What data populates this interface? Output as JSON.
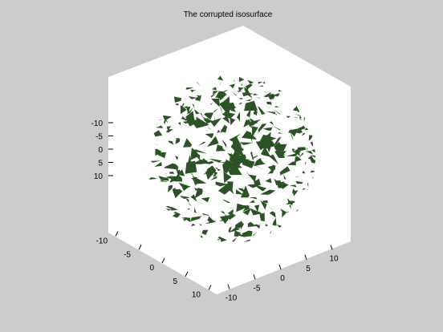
{
  "chart_data": {
    "type": "surface",
    "title": "The corrupted isosurface",
    "surface": "sphere",
    "center": [
      0,
      0,
      0
    ],
    "radius": 12,
    "surface_color": "#2e5228",
    "box_color": "#ffffff",
    "background_color": "#cccccc",
    "grid": false,
    "xlim": [
      -14,
      14
    ],
    "ylim": [
      -14,
      14
    ],
    "zlim": [
      -14,
      14
    ],
    "xticks": [
      -10,
      -5,
      0,
      5,
      10
    ],
    "yticks": [
      -10,
      -5,
      0,
      5,
      10
    ],
    "zticks": [
      -10,
      -5,
      0,
      5,
      10
    ],
    "xtick_labels": [
      "-10",
      "-5",
      "0",
      "5",
      "10"
    ],
    "ytick_labels": [
      "10",
      "5",
      "0",
      "-5",
      "-10"
    ],
    "ztick_labels": [
      "10",
      "5",
      "0",
      "-5",
      "-10"
    ]
  }
}
